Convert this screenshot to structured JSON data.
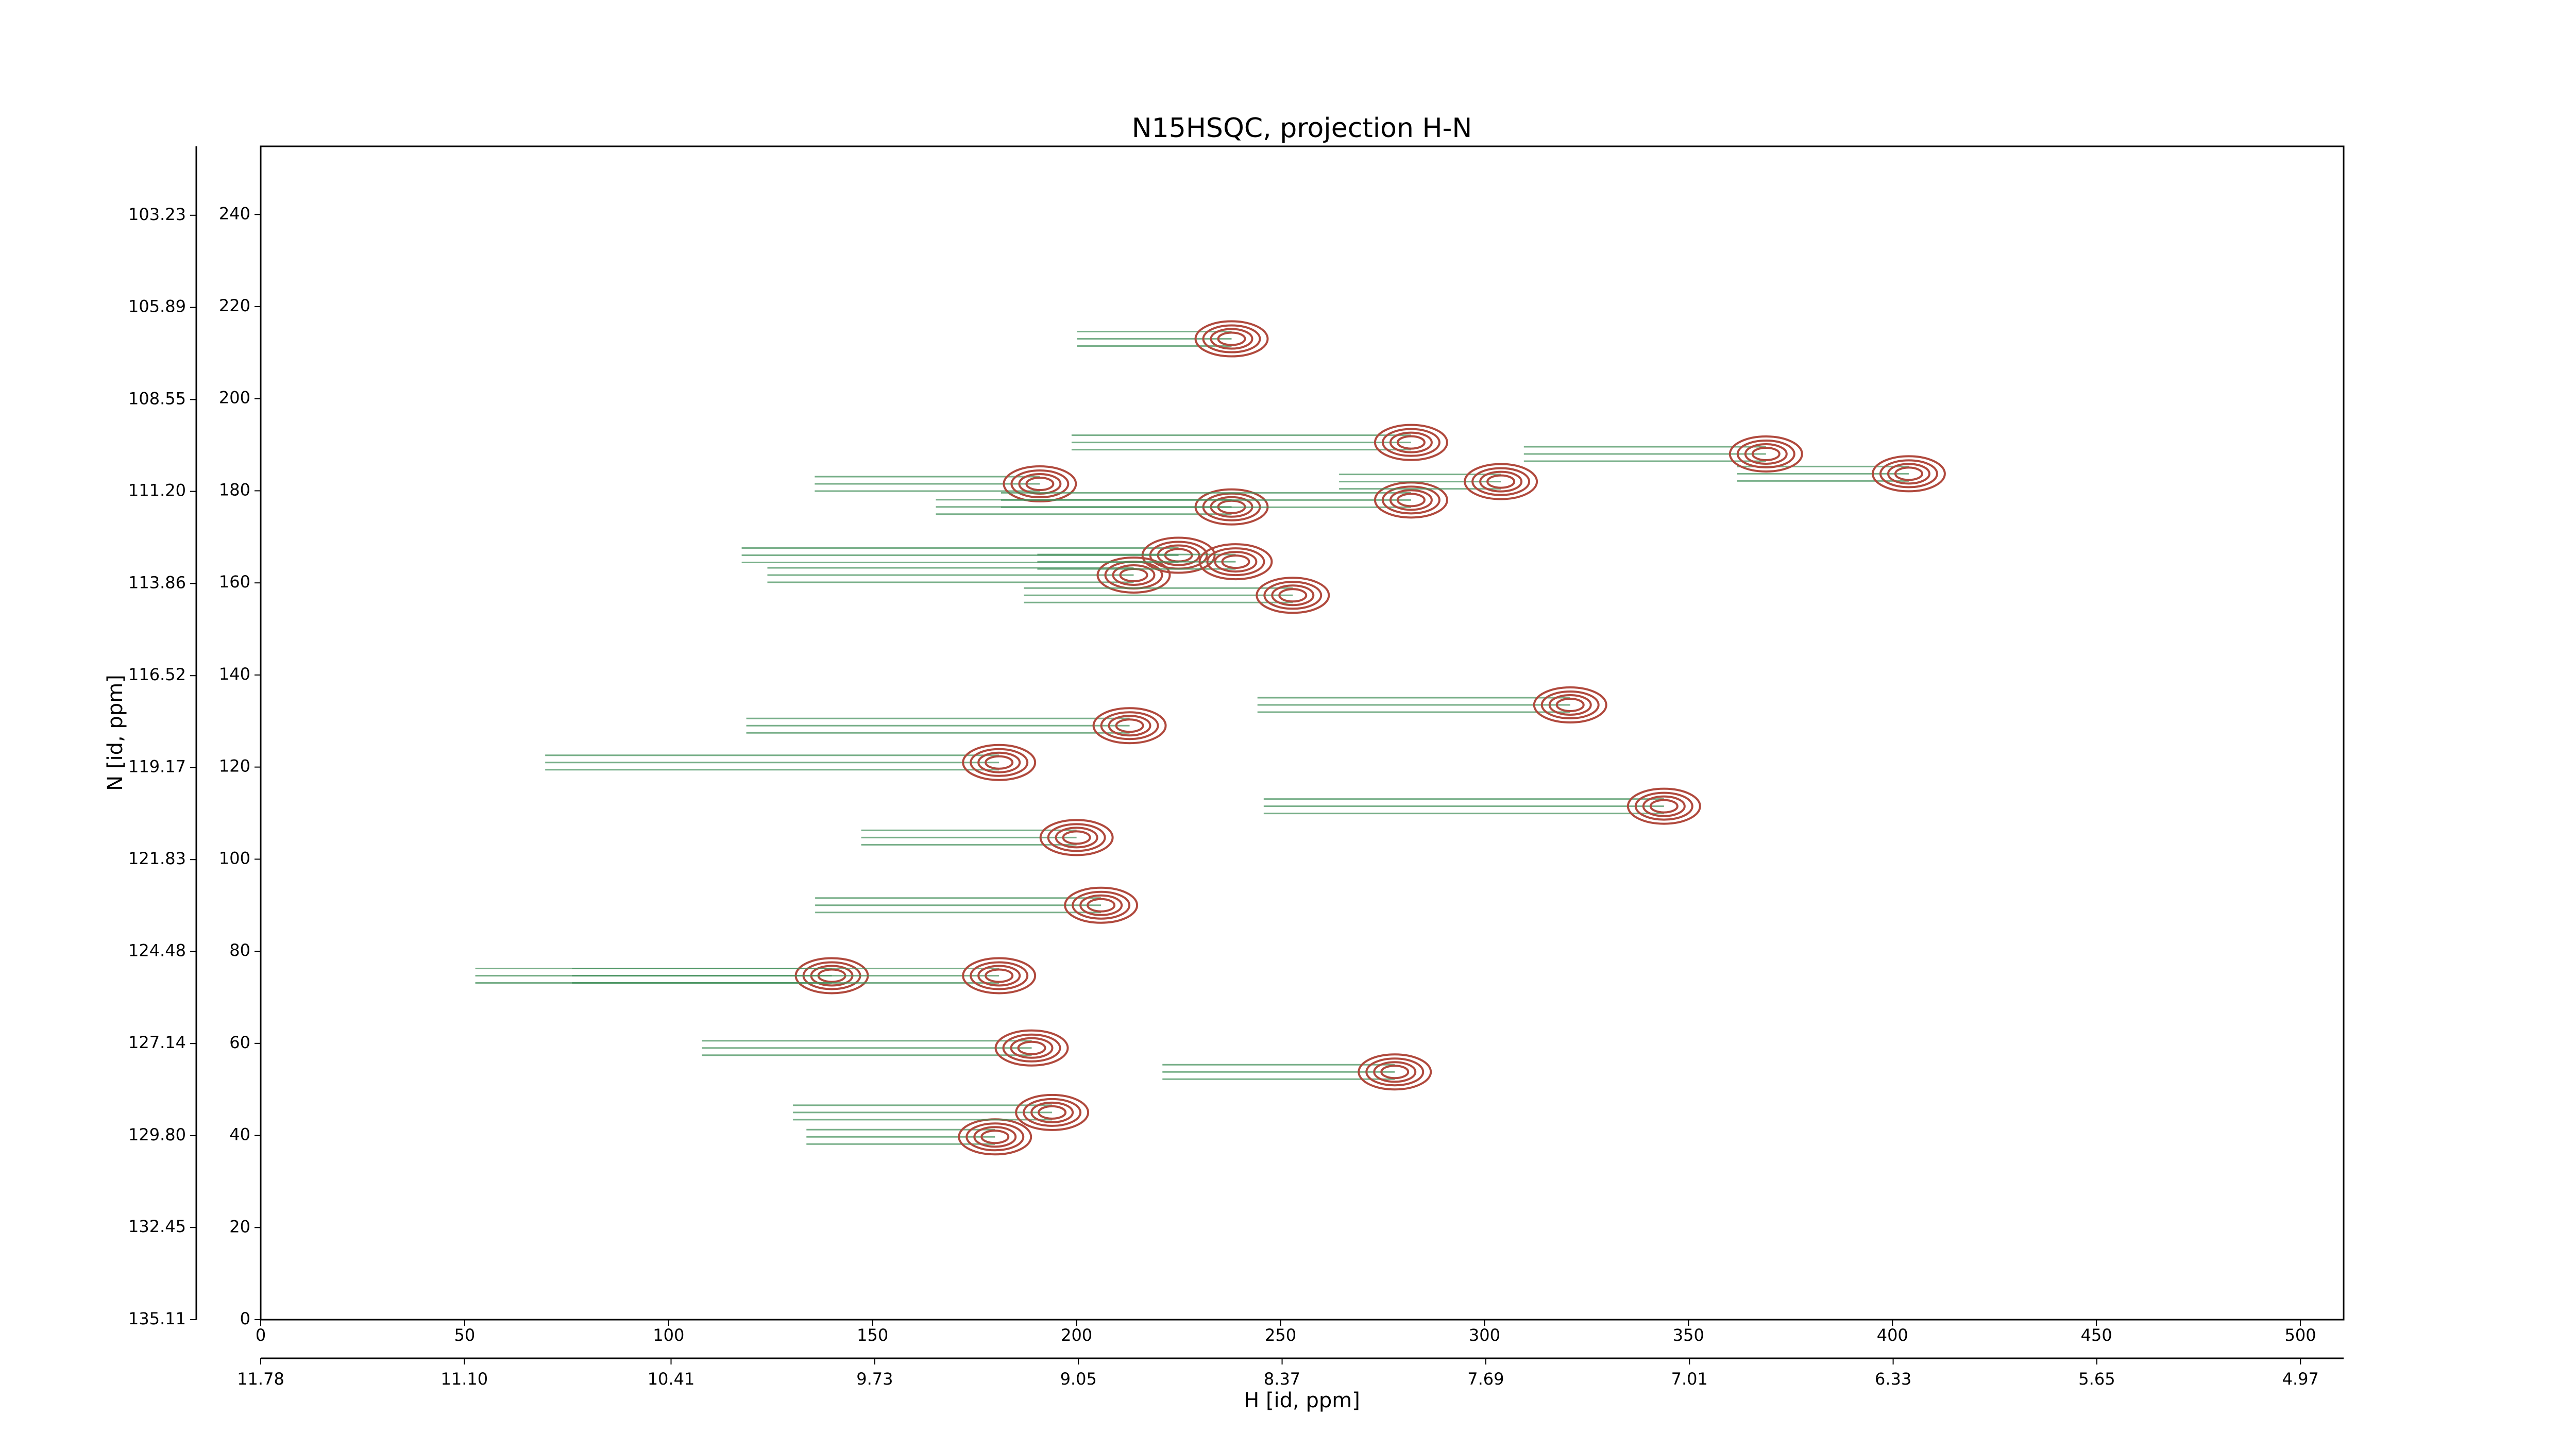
{
  "chart_data": {
    "type": "contour",
    "title": "N15HSQC, projection H-N",
    "xlabel": "H [id, ppm]",
    "ylabel": "N [id, ppm]",
    "xlim": [
      0,
      510.6
    ],
    "xticks": [
      0,
      50,
      100,
      150,
      200,
      250,
      300,
      350,
      400,
      450,
      500
    ],
    "ylim": [
      0,
      254.8
    ],
    "yticks": [
      0,
      20,
      40,
      60,
      80,
      100,
      120,
      140,
      160,
      180,
      200,
      220,
      240
    ],
    "x2lim": [
      11.78,
      4.826
    ],
    "x2ticks": [
      11.78,
      {
        "value": 11.1,
        "label": "11.10"
      },
      10.41,
      9.73,
      9.05,
      8.37,
      7.69,
      7.01,
      6.33,
      5.65,
      4.97
    ],
    "y2lim": [
      135.11,
      101.24
    ],
    "y2ticks": [
      135.11,
      132.45,
      {
        "value": 129.8,
        "label": "129.80"
      },
      127.14,
      124.48,
      121.83,
      119.17,
      116.52,
      113.86,
      {
        "value": 111.2,
        "label": "111.20"
      },
      108.55,
      105.89,
      103.23
    ],
    "peaks_x": [
      238,
      191,
      238,
      214,
      225,
      239,
      253,
      282,
      282,
      404,
      369,
      321,
      213,
      181,
      200,
      206,
      140,
      181,
      180,
      194,
      189,
      344,
      304,
      278
    ],
    "peaks_y": [
      213,
      181.5,
      176.5,
      161.7,
      166,
      164.6,
      157.3,
      190.5,
      178,
      183.7,
      188,
      133.5,
      129,
      121,
      104.7,
      90,
      74.7,
      74.7,
      39.7,
      45,
      59,
      111.5,
      182,
      53.8
    ],
    "color": "#b0493d",
    "negative_color": "#3f8e58"
  }
}
